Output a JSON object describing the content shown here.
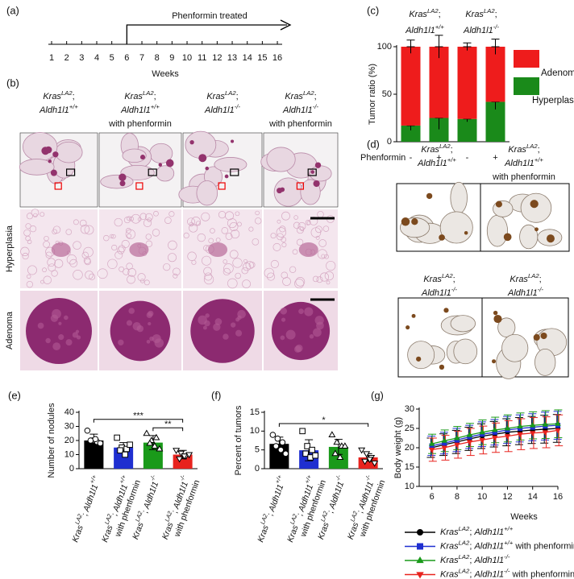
{
  "labels": {
    "a": "(a)",
    "b": "(b)",
    "c": "(c)",
    "d": "(d)",
    "e": "(e)",
    "f": "(f)",
    "g": "(g)"
  },
  "timeline": {
    "label": "Phenformin treated",
    "weeks": [
      1,
      2,
      3,
      4,
      5,
      6,
      7,
      8,
      9,
      10,
      11,
      12,
      13,
      14,
      15,
      16
    ],
    "xlabel": "Weeks",
    "start": 6
  },
  "histology": {
    "columns": [
      [
        [
          [
            "Kras",
            "i"
          ],
          [
            "LA2",
            "sup"
          ],
          [
            ";",
            ""
          ]
        ],
        [
          [
            "Aldh1l1",
            "i"
          ],
          [
            "+/+",
            "sup"
          ]
        ]
      ],
      [
        [
          [
            "Kras",
            "i"
          ],
          [
            "LA2",
            "sup"
          ],
          [
            ";",
            ""
          ]
        ],
        [
          [
            "Aldh1l1",
            "i"
          ],
          [
            "+/+",
            "sup"
          ]
        ],
        [
          [
            "with phenformin",
            ""
          ]
        ]
      ],
      [
        [
          [
            "Kras",
            "i"
          ],
          [
            "LA2",
            "sup"
          ],
          [
            ";",
            ""
          ]
        ],
        [
          [
            "Aldh1l1",
            "i"
          ],
          [
            "-/-",
            "sup"
          ]
        ]
      ],
      [
        [
          [
            "Kras",
            "i"
          ],
          [
            "LA2",
            "sup"
          ],
          [
            ";",
            ""
          ]
        ],
        [
          [
            "Aldh1l1",
            "i"
          ],
          [
            "-/-",
            "sup"
          ]
        ],
        [
          [
            "with phenformin",
            ""
          ]
        ]
      ]
    ],
    "rows": [
      "Hyperplasia",
      "Adenoma"
    ]
  },
  "ihc": {
    "columns": [
      [
        [
          [
            "Kras",
            "i"
          ],
          [
            "LA2",
            "sup"
          ],
          [
            ";",
            ""
          ]
        ],
        [
          [
            "Aldh1l1",
            "i"
          ],
          [
            "+/+",
            "sup"
          ]
        ]
      ],
      [
        [
          [
            "Kras",
            "i"
          ],
          [
            "LA2",
            "sup"
          ],
          [
            ";",
            ""
          ]
        ],
        [
          [
            "Aldh1l1",
            "i"
          ],
          [
            "+/+",
            "sup"
          ]
        ],
        [
          [
            "with phenformin",
            ""
          ]
        ]
      ],
      [
        [
          [
            "Kras",
            "i"
          ],
          [
            "LA2",
            "sup"
          ],
          [
            ";",
            ""
          ]
        ],
        [
          [
            "Aldh1l1",
            "i"
          ],
          [
            "-/-",
            "sup"
          ]
        ]
      ],
      [
        [
          [
            "Kras",
            "i"
          ],
          [
            "LA2",
            "sup"
          ],
          [
            ";",
            ""
          ]
        ],
        [
          [
            "Aldh1l1",
            "i"
          ],
          [
            "-/-",
            "sup"
          ]
        ],
        [
          [
            "with phenformin",
            ""
          ]
        ]
      ]
    ]
  },
  "chart_data": [
    {
      "type": "stacked_bar",
      "ylabel": "Tumor ratio (%)",
      "group_labels": [
        [
          [
            [
              "Kras",
              "i"
            ],
            [
              "LA2",
              "sup"
            ],
            [
              ";",
              ""
            ]
          ],
          [
            [
              "Aldh1l1",
              "i"
            ],
            [
              "+/+",
              "sup"
            ]
          ]
        ],
        [
          [
            [
              "Kras",
              "i"
            ],
            [
              "LA2",
              "sup"
            ],
            [
              ";",
              ""
            ]
          ],
          [
            [
              "Aldh1l1",
              "i"
            ],
            [
              "-/-",
              "sup"
            ]
          ]
        ]
      ],
      "row_label": "Phenformin",
      "categories": [
        "-",
        "+",
        "-",
        "+"
      ],
      "series": [
        {
          "name": "Hyperplasia",
          "color": "#1a8a1a",
          "values": [
            17,
            25,
            24,
            42
          ],
          "errors": [
            5,
            12,
            3,
            8
          ]
        },
        {
          "name": "Adenoma",
          "color": "#ee1c1c",
          "values": [
            83,
            75,
            76,
            58
          ],
          "errors": [
            7,
            12,
            4,
            8
          ]
        }
      ],
      "ylim": [
        0,
        100
      ],
      "yticks": [
        0,
        50,
        100
      ]
    },
    {
      "type": "bar",
      "ylabel": "Number of nodules",
      "categories": [
        [
          [
            [
              "Kras",
              "i"
            ],
            [
              "LA2",
              "sup"
            ],
            [
              "; ",
              ""
            ],
            [
              "Aldh1l1",
              "i"
            ],
            [
              "+/+",
              "sup"
            ]
          ]
        ],
        [
          [
            [
              "Kras",
              "i"
            ],
            [
              "LA2",
              "sup"
            ],
            [
              "; ",
              ""
            ],
            [
              "Aldh1l1",
              "i"
            ],
            [
              "+/+",
              "sup"
            ]
          ],
          [
            [
              "with phenformin",
              ""
            ]
          ]
        ],
        [
          [
            [
              "Kras",
              "i"
            ],
            [
              "LA2",
              "sup"
            ],
            [
              "; ",
              ""
            ],
            [
              "Aldh1l1",
              "i"
            ],
            [
              "-/-",
              "sup"
            ]
          ]
        ],
        [
          [
            [
              "Kras",
              "i"
            ],
            [
              "LA2",
              "sup"
            ],
            [
              "; ",
              ""
            ],
            [
              "Aldh1l1",
              "i"
            ],
            [
              "-/-",
              "sup"
            ]
          ],
          [
            [
              "with phenformin",
              ""
            ]
          ]
        ]
      ],
      "values": [
        20,
        15,
        18.5,
        10
      ],
      "errors": [
        4.5,
        3.5,
        5,
        3
      ],
      "colors": [
        "#000000",
        "#1f2fd0",
        "#1a9a1a",
        "#e8231e"
      ],
      "markers": [
        "circle",
        "square",
        "triangle",
        "triangle-down"
      ],
      "points": [
        [
          27,
          20,
          19,
          20,
          21,
          18
        ],
        [
          22,
          15,
          14,
          13,
          10,
          17
        ],
        [
          25,
          20,
          22,
          18,
          16,
          14
        ],
        [
          13,
          11,
          9,
          7,
          9,
          10
        ]
      ],
      "significance": [
        {
          "label": "***",
          "between": [
            0,
            3
          ],
          "y": 35
        },
        {
          "label": "**",
          "between": [
            2,
            3
          ],
          "y": 29
        }
      ],
      "ylim": [
        0,
        40
      ],
      "yticks": [
        0,
        10,
        20,
        30,
        40
      ]
    },
    {
      "type": "bar",
      "ylabel": "Percent of tumors",
      "categories": [
        [
          [
            [
              "Kras",
              "i"
            ],
            [
              "LA2",
              "sup"
            ],
            [
              "; ",
              ""
            ],
            [
              "Aldh1l1",
              "i"
            ],
            [
              "+/+",
              "sup"
            ]
          ]
        ],
        [
          [
            [
              "Kras",
              "i"
            ],
            [
              "LA2",
              "sup"
            ],
            [
              "; ",
              ""
            ],
            [
              "Aldh1l1",
              "i"
            ],
            [
              "+/+",
              "sup"
            ]
          ],
          [
            [
              "with phenformin",
              ""
            ]
          ]
        ],
        [
          [
            [
              "Kras",
              "i"
            ],
            [
              "LA2",
              "sup"
            ],
            [
              "; ",
              ""
            ],
            [
              "Aldh1l1",
              "i"
            ],
            [
              "-/-",
              "sup"
            ]
          ]
        ],
        [
          [
            [
              "Kras",
              "i"
            ],
            [
              "LA2",
              "sup"
            ],
            [
              "; ",
              ""
            ],
            [
              "Aldh1l1",
              "i"
            ],
            [
              "-/-",
              "sup"
            ]
          ],
          [
            [
              "with phenformin",
              ""
            ]
          ]
        ]
      ],
      "values": [
        6.6,
        4.9,
        5.8,
        3.0
      ],
      "errors": [
        1.8,
        2.8,
        2,
        1
      ],
      "colors": [
        "#000000",
        "#1f2fd0",
        "#1a9a1a",
        "#e8231e"
      ],
      "markers": [
        "circle",
        "square",
        "triangle",
        "triangle-down"
      ],
      "points": [
        [
          9,
          8,
          7,
          6,
          5,
          4
        ],
        [
          10,
          6,
          5,
          4,
          3,
          3.5
        ],
        [
          9,
          7,
          6,
          4,
          3,
          6
        ],
        [
          5,
          4,
          3,
          2,
          2.5,
          1.5
        ]
      ],
      "significance": [
        {
          "label": "*",
          "between": [
            0,
            3
          ],
          "y": 12
        }
      ],
      "ylim": [
        0,
        15
      ],
      "yticks": [
        0,
        5,
        10,
        15
      ]
    },
    {
      "type": "line",
      "ylabel": "Body weight (g)",
      "xlabel": "Weeks",
      "x": [
        6,
        7,
        8,
        9,
        10,
        11,
        12,
        13,
        14,
        15,
        16
      ],
      "series": [
        {
          "name": [
            [
              "Kras",
              "i"
            ],
            [
              "LA2",
              "sup"
            ],
            [
              "; ",
              ""
            ],
            [
              "Aldh1l1",
              "i"
            ],
            [
              "+/+",
              "sup"
            ]
          ],
          "color": "#000000",
          "marker": "circle",
          "values": [
            20,
            20.8,
            21.5,
            22.3,
            23,
            23.5,
            24,
            24.3,
            24.6,
            24.8,
            25
          ],
          "errors": [
            2.5,
            2.8,
            3,
            3,
            3.2,
            3.3,
            3.5,
            3.5,
            3.5,
            3.6,
            3.6
          ]
        },
        {
          "name": [
            [
              "Kras",
              "i"
            ],
            [
              "LA2",
              "sup"
            ],
            [
              "; ",
              ""
            ],
            [
              "Aldh1l1",
              "i"
            ],
            [
              "+/+",
              "sup"
            ],
            [
              " with phenformin",
              ""
            ]
          ],
          "color": "#1f2fd0",
          "marker": "square",
          "values": [
            20.5,
            21.2,
            22,
            22.8,
            23.5,
            24,
            24.6,
            25,
            25.3,
            25.6,
            25.8
          ],
          "errors": [
            2.5,
            2.8,
            3,
            3,
            3.2,
            3.3,
            3.5,
            3.5,
            3.5,
            3.6,
            3.6
          ]
        },
        {
          "name": [
            [
              "Kras",
              "i"
            ],
            [
              "LA2",
              "sup"
            ],
            [
              "; ",
              ""
            ],
            [
              "Aldh1l1",
              "i"
            ],
            [
              "-/-",
              "sup"
            ]
          ],
          "color": "#1a9a1a",
          "marker": "triangle",
          "values": [
            21,
            21.8,
            22.5,
            23.3,
            24,
            24.6,
            25,
            25.5,
            25.8,
            26,
            26.2
          ],
          "errors": [
            2.5,
            2.8,
            3,
            3,
            3.2,
            3.3,
            3.5,
            3.5,
            3.5,
            3.6,
            3.6
          ]
        },
        {
          "name": [
            [
              "Kras",
              "i"
            ],
            [
              "LA2",
              "sup"
            ],
            [
              "; ",
              ""
            ],
            [
              "Aldh1l1",
              "i"
            ],
            [
              "-/-",
              "sup"
            ],
            [
              " with phenformin",
              ""
            ]
          ],
          "color": "#e8231e",
          "marker": "triangle-down",
          "values": [
            19.5,
            20,
            20.8,
            21.5,
            22,
            22.6,
            23,
            23.5,
            23.8,
            24,
            24.5
          ],
          "errors": [
            3,
            3.2,
            3.5,
            3.5,
            3.6,
            3.8,
            4,
            4,
            4,
            4,
            4
          ]
        }
      ],
      "xlim": [
        5,
        16
      ],
      "xticks": [
        6,
        8,
        10,
        12,
        14,
        16
      ],
      "ylim": [
        10,
        30
      ],
      "yticks": [
        10,
        15,
        20,
        25,
        30
      ]
    }
  ]
}
